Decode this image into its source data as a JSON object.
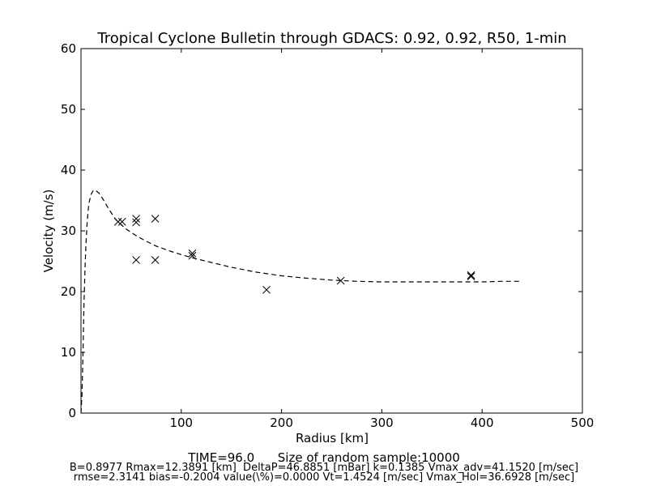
{
  "chart_data": {
    "type": "scatter",
    "title": "Tropical Cyclone Bulletin through GDACS: 0.92, 0.92, R50, 1-min",
    "xlabel": "Radius [km]",
    "ylabel": "Velocity (m/s)",
    "xlim": [
      0,
      500
    ],
    "ylim": [
      0,
      60
    ],
    "xticks": [
      100,
      200,
      300,
      400,
      500
    ],
    "yticks": [
      0,
      10,
      20,
      30,
      40,
      50,
      60
    ],
    "grid": false,
    "series": [
      {
        "kind": "scatter",
        "marker": "x",
        "points": [
          [
            37,
            31.5
          ],
          [
            41,
            31.5
          ],
          [
            55,
            32.0
          ],
          [
            55,
            31.4
          ],
          [
            55,
            25.2
          ],
          [
            74,
            32.0
          ],
          [
            74,
            25.2
          ],
          [
            111,
            26.3
          ],
          [
            111,
            25.9
          ],
          [
            185,
            20.3
          ],
          [
            259,
            21.8
          ],
          [
            389,
            22.7
          ],
          [
            389,
            22.5
          ]
        ]
      },
      {
        "kind": "line",
        "style": "dashed",
        "points": [
          [
            0,
            0
          ],
          [
            1,
            3
          ],
          [
            2,
            10
          ],
          [
            3,
            18
          ],
          [
            4,
            24
          ],
          [
            5,
            28
          ],
          [
            6,
            31
          ],
          [
            7,
            33.2
          ],
          [
            8,
            34.6
          ],
          [
            10,
            36
          ],
          [
            12.4,
            36.7
          ],
          [
            15,
            36.6
          ],
          [
            18,
            36.2
          ],
          [
            22,
            35.2
          ],
          [
            28,
            33.5
          ],
          [
            35,
            31.8
          ],
          [
            45,
            30.3
          ],
          [
            55,
            29.2
          ],
          [
            65,
            28.3
          ],
          [
            75,
            27.5
          ],
          [
            90,
            26.6
          ],
          [
            110,
            25.6
          ],
          [
            130,
            24.8
          ],
          [
            150,
            24.0
          ],
          [
            175,
            23.2
          ],
          [
            200,
            22.6
          ],
          [
            225,
            22.2
          ],
          [
            250,
            21.9
          ],
          [
            275,
            21.7
          ],
          [
            300,
            21.6
          ],
          [
            325,
            21.6
          ],
          [
            350,
            21.6
          ],
          [
            375,
            21.6
          ],
          [
            400,
            21.6
          ],
          [
            420,
            21.7
          ],
          [
            437,
            21.7
          ]
        ]
      }
    ]
  },
  "footer": {
    "line1": "TIME=96.0      Size of random sample:10000",
    "line2": "B=0.8977 Rmax=12.3891 [km]  DeltaP=46.8851 [mBar] k=0.1385 Vmax_adv=41.1520 [m/sec]",
    "line3": "rmse=2.3141 bias=-0.2004 value(\\%)=0.0000 Vt=1.4524 [m/sec] Vmax_Hol=36.6928 [m/sec]"
  }
}
